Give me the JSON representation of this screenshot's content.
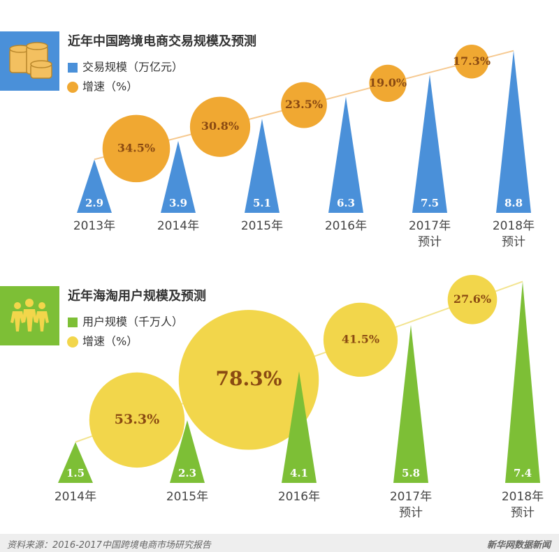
{
  "chart_data": [
    {
      "type": "triangle-bubble",
      "title": "近年中国跨境电商交易规模及预测",
      "categories": [
        "2013年",
        "2014年",
        "2015年",
        "2016年",
        "2017年\n预计",
        "2018年\n预计"
      ],
      "series": [
        {
          "name": "交易规模（万亿元）",
          "color": "#4a90d9",
          "values": [
            2.9,
            3.9,
            5.1,
            6.3,
            7.5,
            8.8
          ]
        },
        {
          "name": "增速（%）",
          "color": "#f0a832",
          "values": [
            null,
            34.5,
            30.8,
            23.5,
            19.0,
            17.3
          ],
          "value_labels": [
            null,
            "34.5%",
            "30.8%",
            "23.5%",
            "19.0%",
            "17.3%"
          ]
        }
      ]
    },
    {
      "type": "triangle-bubble",
      "title": "近年海淘用户规模及预测",
      "categories": [
        "2014年",
        "2015年",
        "2016年",
        "2017年\n预计",
        "2018年\n预计"
      ],
      "series": [
        {
          "name": "用户规模（千万人）",
          "color": "#7dbf36",
          "values": [
            1.5,
            2.3,
            4.1,
            5.8,
            7.4
          ]
        },
        {
          "name": "增速（%）",
          "color": "#f2d64b",
          "values": [
            null,
            53.3,
            78.3,
            41.5,
            27.6
          ],
          "value_labels": [
            null,
            "53.3%",
            "78.3%",
            "41.5%",
            "27.6%"
          ]
        }
      ]
    }
  ],
  "footer": {
    "source": "资料来源：2016-2017中国跨境电商市场研究报告",
    "brand": "新华网数据新闻"
  }
}
